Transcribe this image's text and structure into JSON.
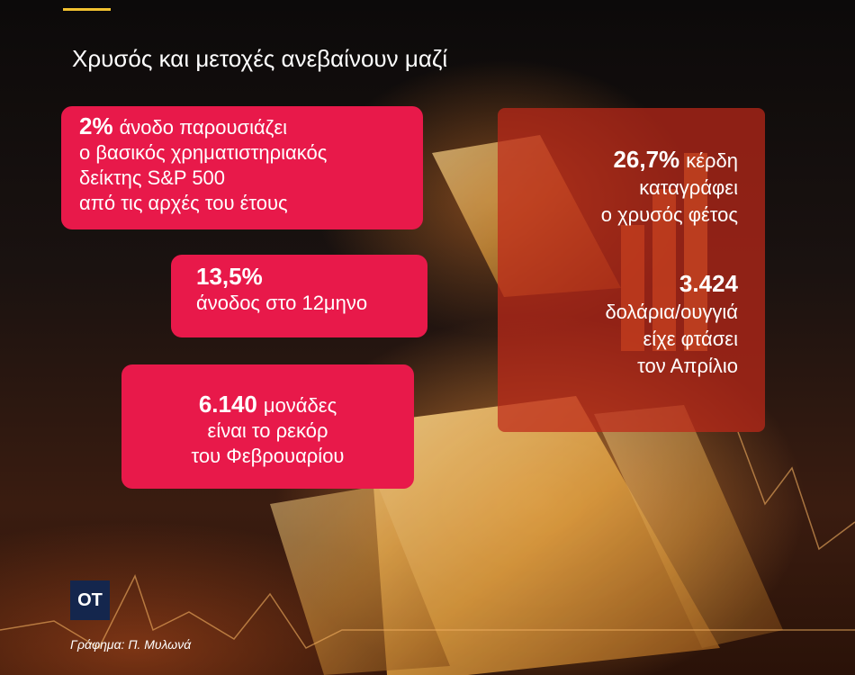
{
  "title": "Χρυσός και μετοχές ανεβαίνουν μαζί",
  "boxes": [
    {
      "lines": [
        {
          "highlight": "2%",
          "text": "άνοδο παρουσιάζει"
        },
        {
          "text": "ο βασικός χρηματιστηριακός"
        },
        {
          "text": "δείκτης S&P 500"
        },
        {
          "text": "από τις αρχές του έτους"
        }
      ]
    },
    {
      "lines": [
        {
          "highlight": "13,5%"
        },
        {
          "text": "άνοδος στο 12μηνο"
        }
      ]
    },
    {
      "lines": [
        {
          "highlight": "6.140",
          "text": "μονάδες"
        },
        {
          "text": "είναι το ρεκόρ"
        },
        {
          "text": "του Φεβρουαρίου"
        }
      ]
    }
  ],
  "side_panel": [
    {
      "lines": [
        {
          "highlight": "26,7%",
          "text": "κέρδη"
        },
        {
          "text": "καταγράφει"
        },
        {
          "text": "ο χρυσός φέτος"
        }
      ]
    },
    {
      "lines": [
        {
          "highlight": "3.424"
        },
        {
          "text": "δολάρια/ουγγιά"
        },
        {
          "text": "είχε φτάσει"
        },
        {
          "text": "τον Απρίλιο"
        }
      ]
    }
  ],
  "logo": "ΟΤ",
  "credit": "Γράφημα: Π. Μυλωνά"
}
